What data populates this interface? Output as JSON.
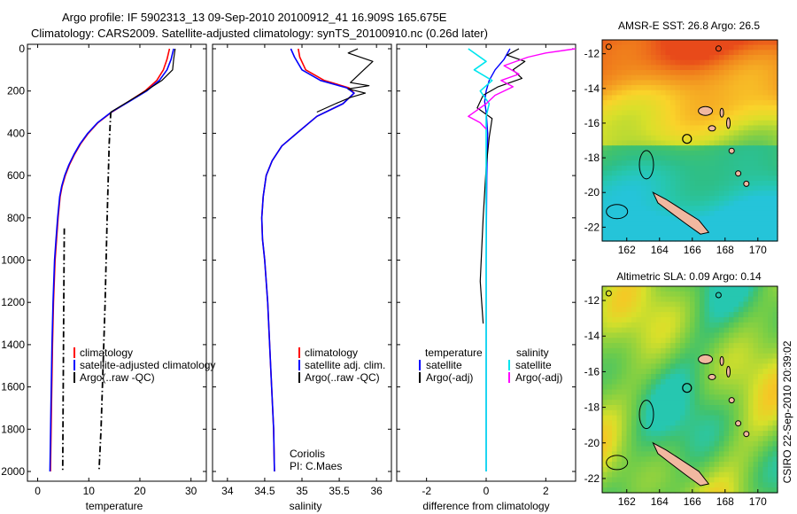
{
  "header": {
    "title_line1": "Argo profile: IF 5902313_13 09-Sep-2010 20100912_41 16.909S 165.675E",
    "title_line2": "Climatology: CARS2009. Satellite-adjusted climatology: synTS_20100910.nc (0.26d later)"
  },
  "footer": {
    "credit": "CSIRO 22-Sep-2010 20:39:02"
  },
  "colors": {
    "climatology": "#ff0000",
    "satellite": "#0000ff",
    "argo": "#000000",
    "salinity_satellite": "#00e5ee",
    "salinity_argo": "#ff00ff",
    "adjusted_dashdot": "#000000"
  },
  "chart_data": [
    {
      "type": "line",
      "id": "temperature",
      "xlabel": "temperature",
      "ylabel": "",
      "xlim": [
        -2,
        33
      ],
      "ylim": [
        2050,
        0
      ],
      "y_reversed": true,
      "xticks": [
        0,
        10,
        20,
        30
      ],
      "xtick_labels": [
        "0",
        "10",
        "20",
        "30"
      ],
      "yticks": [
        0,
        200,
        400,
        600,
        800,
        1000,
        1200,
        1400,
        1600,
        1800,
        2000
      ],
      "ytick_labels": [
        "0",
        "200",
        "400",
        "600",
        "800",
        "1000",
        "1200",
        "1400",
        "1600",
        "1800",
        "2000"
      ],
      "legend": {
        "position": "lower-right",
        "entries": [
          "climatology",
          "satellite-adjusted climatology",
          "Argo(..raw -QC)"
        ]
      },
      "series": [
        {
          "name": "climatology",
          "color": "#ff0000",
          "width": 1.6,
          "x": [
            25.8,
            25.3,
            24.6,
            23.3,
            21.0,
            17.8,
            14.5,
            11.8,
            9.9,
            8.4,
            7.2,
            6.2,
            5.4,
            4.8,
            4.4,
            4.0,
            3.7,
            3.4,
            3.1,
            2.9,
            2.7,
            2.5
          ],
          "y": [
            0,
            50,
            100,
            150,
            200,
            250,
            300,
            350,
            400,
            450,
            500,
            550,
            600,
            650,
            700,
            800,
            900,
            1000,
            1200,
            1400,
            1700,
            2000
          ]
        },
        {
          "name": "satellite-adjusted climatology",
          "color": "#0000ff",
          "width": 1.6,
          "x": [
            26.6,
            26.1,
            25.3,
            23.8,
            21.3,
            17.9,
            14.4,
            11.7,
            9.8,
            8.3,
            7.1,
            6.1,
            5.3,
            4.7,
            4.3,
            3.9,
            3.6,
            3.3,
            3.0,
            2.8,
            2.6,
            2.4
          ],
          "y": [
            0,
            50,
            100,
            150,
            200,
            250,
            300,
            350,
            400,
            450,
            500,
            550,
            600,
            650,
            700,
            800,
            900,
            1000,
            1200,
            1400,
            1700,
            2000
          ]
        },
        {
          "name": "Argo",
          "color": "#000000",
          "width": 1.2,
          "x": [
            26.9,
            26.6,
            26.4,
            24.3,
            21.1,
            17.7,
            14.3
          ],
          "y": [
            0,
            50,
            100,
            150,
            200,
            250,
            300
          ]
        },
        {
          "name": "Argo dash-dot (upper)",
          "color": "#000000",
          "width": 1.8,
          "dash": "7,3,1.5,3",
          "x": [
            14.3,
            14.0,
            13.6,
            13.2,
            12.8,
            12.4,
            12.0
          ],
          "y": [
            300,
            450,
            800,
            1200,
            1500,
            1800,
            2000
          ]
        },
        {
          "name": "Argo dash-dot (lower)",
          "color": "#000000",
          "width": 1.8,
          "dash": "7,3,1.5,3",
          "x": [
            5.2,
            5.1,
            5.0,
            4.9
          ],
          "y": [
            850,
            1200,
            1600,
            2000
          ]
        }
      ]
    },
    {
      "type": "line",
      "id": "salinity",
      "xlabel": "salinity",
      "xlim": [
        33.8,
        36.2
      ],
      "ylim": [
        2050,
        0
      ],
      "y_reversed": true,
      "xticks": [
        34,
        34.5,
        35,
        35.5,
        36
      ],
      "xtick_labels": [
        "34",
        "34.5",
        "35",
        "35.5",
        "36"
      ],
      "legend": {
        "position": "lower-right",
        "entries": [
          "climatology",
          "satellite adj. clim.",
          "Argo(..raw -QC)"
        ]
      },
      "annotation": {
        "line1": "Coriolis",
        "line2": "PI: C.Maes"
      },
      "series": [
        {
          "name": "climatology",
          "color": "#ff0000",
          "width": 1.6,
          "x": [
            34.95,
            34.97,
            35.05,
            35.3,
            35.63,
            35.7,
            35.55,
            35.2,
            34.93,
            34.73,
            34.6,
            34.52,
            34.48,
            34.46,
            34.47,
            34.5,
            34.54,
            34.58,
            34.62,
            34.63
          ],
          "y": [
            0,
            40,
            100,
            150,
            185,
            210,
            260,
            320,
            400,
            460,
            530,
            600,
            700,
            800,
            900,
            1000,
            1200,
            1500,
            1800,
            2000
          ]
        },
        {
          "name": "satellite adj. clim.",
          "color": "#0000ff",
          "width": 1.6,
          "x": [
            34.85,
            34.9,
            35.0,
            35.25,
            35.6,
            35.7,
            35.55,
            35.2,
            34.93,
            34.73,
            34.6,
            34.52,
            34.48,
            34.46,
            34.47,
            34.5,
            34.54,
            34.58,
            34.62,
            34.63
          ],
          "y": [
            0,
            40,
            100,
            150,
            185,
            210,
            260,
            320,
            400,
            460,
            530,
            600,
            700,
            800,
            900,
            1000,
            1200,
            1500,
            1800,
            2000
          ]
        },
        {
          "name": "Argo",
          "color": "#000000",
          "width": 1.2,
          "x": [
            35.75,
            35.62,
            35.95,
            35.8,
            35.65,
            35.9,
            35.62,
            35.85,
            35.65,
            35.45,
            35.2
          ],
          "y": [
            0,
            20,
            60,
            110,
            160,
            175,
            190,
            210,
            230,
            260,
            300
          ]
        }
      ]
    },
    {
      "type": "line",
      "id": "difference",
      "xlabel": "difference from climatology",
      "xlim": [
        -3,
        3
      ],
      "ylim": [
        2050,
        0
      ],
      "y_reversed": true,
      "xticks": [
        -2,
        0,
        2
      ],
      "xtick_labels": [
        "-2",
        "0",
        "2"
      ],
      "legend": {
        "position": "lower-right",
        "temperature_header": "temperature",
        "salinity_header": "salinity",
        "entries": [
          "satellite",
          "Argo(-adj)",
          "satellite",
          "Argo(-adj)"
        ]
      },
      "series": [
        {
          "name": "temperature satellite",
          "color": "#0000ff",
          "width": 1.4,
          "x": [
            0.8,
            0.6,
            0.3,
            0.1,
            0.0,
            -0.05,
            0.0,
            0.05,
            0.02,
            0.0,
            0.0,
            0.0
          ],
          "y": [
            0,
            50,
            100,
            150,
            200,
            250,
            300,
            400,
            600,
            1000,
            1500,
            2000
          ]
        },
        {
          "name": "temperature Argo(-adj)",
          "color": "#000000",
          "width": 1.2,
          "x": [
            1.1,
            0.7,
            1.3,
            0.9,
            1.2,
            0.4,
            -0.1,
            -0.3,
            0.2,
            0.1,
            0.0,
            -0.1,
            -0.2,
            -0.1
          ],
          "y": [
            0,
            30,
            60,
            100,
            140,
            180,
            220,
            280,
            330,
            420,
            560,
            800,
            1100,
            1300
          ]
        },
        {
          "name": "salinity satellite",
          "color": "#00e5ee",
          "width": 1.6,
          "x": [
            -0.6,
            0.0,
            -0.4,
            0.2,
            -0.2,
            0.1,
            0.0,
            0.0,
            0.0,
            0.0
          ],
          "y": [
            0,
            60,
            100,
            150,
            200,
            260,
            320,
            600,
            1200,
            2000
          ]
        },
        {
          "name": "salinity Argo(-adj)",
          "color": "#ff00ff",
          "width": 1.4,
          "x": [
            3.0,
            2.0,
            1.4,
            0.6,
            1.1,
            0.5,
            0.9,
            0.3,
            0.0,
            -0.3,
            -0.6,
            -0.2,
            0.0
          ],
          "y": [
            0,
            20,
            40,
            80,
            120,
            150,
            180,
            220,
            260,
            290,
            320,
            350,
            380
          ]
        }
      ]
    },
    {
      "type": "heatmap",
      "id": "sst_map",
      "title": "AMSR-E SST: 26.8 Argo: 26.5",
      "xticks": [
        162,
        164,
        166,
        168,
        170
      ],
      "yticks": [
        -12,
        -14,
        -16,
        -18,
        -20,
        -22
      ],
      "xlim": [
        160.5,
        171.2
      ],
      "ylim": [
        -22.8,
        -11.2
      ],
      "argo_position": {
        "lon": 165.675,
        "lat": -16.909
      },
      "colormap": [
        "#e84a1a",
        "#f07f1c",
        "#f5a623",
        "#fad32a",
        "#d8e02a",
        "#8fd140",
        "#42c26b",
        "#2ebf88",
        "#26c7b0",
        "#25c4d9"
      ]
    },
    {
      "type": "heatmap",
      "id": "sla_map",
      "title": "Altimetric SLA: 0.09 Argo: 0.14",
      "xticks": [
        162,
        164,
        166,
        168,
        170
      ],
      "yticks": [
        -12,
        -14,
        -16,
        -18,
        -20,
        -22
      ],
      "xlim": [
        160.5,
        171.2
      ],
      "ylim": [
        -22.8,
        -11.2
      ],
      "argo_position": {
        "lon": 165.675,
        "lat": -16.909
      },
      "colormap": [
        "#26c7b0",
        "#42c26b",
        "#6fcc4a",
        "#9ed43a",
        "#d8e02a",
        "#f5c825",
        "#f5a623"
      ]
    }
  ]
}
